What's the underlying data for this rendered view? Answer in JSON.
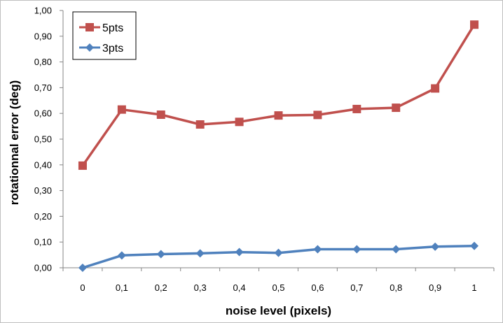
{
  "chart_data": {
    "type": "line",
    "title": "",
    "xlabel": "noise level (pixels)",
    "ylabel": "rotationnal error (deg)",
    "categories": [
      "0",
      "0,1",
      "0,2",
      "0,3",
      "0,4",
      "0,5",
      "0,6",
      "0,7",
      "0,8",
      "0,9",
      "1"
    ],
    "ylim": [
      0,
      1
    ],
    "yticks": [
      "0,00",
      "0,10",
      "0,20",
      "0,30",
      "0,40",
      "0,50",
      "0,60",
      "0,70",
      "0,80",
      "0,90",
      "1,00"
    ],
    "grid": false,
    "legend_position": "top-left",
    "series": [
      {
        "name": "5pts",
        "color": "#c0504d",
        "marker": "square",
        "values": [
          0.397,
          0.615,
          0.595,
          0.557,
          0.567,
          0.592,
          0.594,
          0.617,
          0.622,
          0.697,
          0.945
        ]
      },
      {
        "name": "3pts",
        "color": "#4f81bd",
        "marker": "diamond",
        "values": [
          0.0,
          0.048,
          0.053,
          0.056,
          0.061,
          0.058,
          0.072,
          0.072,
          0.072,
          0.082,
          0.085
        ]
      }
    ]
  }
}
